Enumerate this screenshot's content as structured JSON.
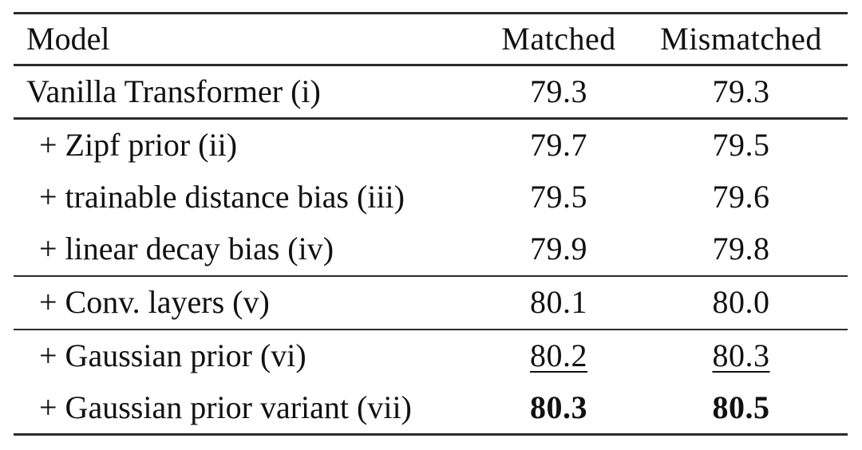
{
  "table": {
    "columns": [
      {
        "label": "Model"
      },
      {
        "label": "Matched"
      },
      {
        "label": "Mismatched"
      }
    ],
    "rows": [
      {
        "model": "Vanilla Transformer (i)",
        "indented": false,
        "matched": {
          "value": "79.3"
        },
        "mismatched": {
          "value": "79.3"
        }
      },
      {
        "model": "+ Zipf prior (ii)",
        "indented": true,
        "matched": {
          "value": "79.7"
        },
        "mismatched": {
          "value": "79.5"
        }
      },
      {
        "model": "+ trainable distance bias (iii)",
        "indented": true,
        "matched": {
          "value": "79.5"
        },
        "mismatched": {
          "value": "79.6"
        }
      },
      {
        "model": "+ linear decay bias (iv)",
        "indented": true,
        "matched": {
          "value": "79.9"
        },
        "mismatched": {
          "value": "79.8"
        }
      },
      {
        "model": "+ Conv. layers (v)",
        "indented": true,
        "matched": {
          "value": "80.1"
        },
        "mismatched": {
          "value": "80.0"
        }
      },
      {
        "model": "+ Gaussian prior (vi)",
        "indented": true,
        "matched": {
          "value": "80.2",
          "emphasis": "underline"
        },
        "mismatched": {
          "value": "80.3",
          "emphasis": "underline"
        }
      },
      {
        "model": "+ Gaussian prior variant (vii)",
        "indented": true,
        "matched": {
          "value": "80.3",
          "emphasis": "bold"
        },
        "mismatched": {
          "value": "80.5",
          "emphasis": "bold"
        }
      }
    ],
    "colors": {
      "background": "#ffffff",
      "text": "#111111",
      "rule": "#2b2b2b"
    }
  }
}
